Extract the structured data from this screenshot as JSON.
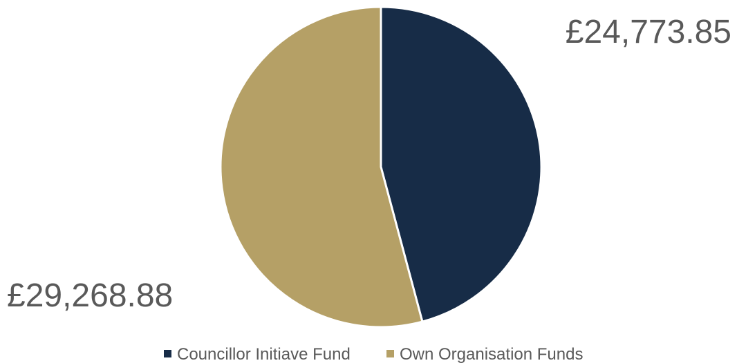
{
  "chart_data": {
    "type": "pie",
    "title": "",
    "categories": [
      "Councillor Initiave Fund",
      "Own Organisation Funds"
    ],
    "values": [
      24773.85,
      29268.88
    ],
    "data_labels": [
      "£24,773.85",
      "£29,268.88"
    ],
    "colors": [
      "#172c47",
      "#b5a066"
    ],
    "start_angle_deg": 0,
    "direction": "clockwise",
    "legend": {
      "position": "bottom",
      "entries": [
        "Councillor Initiave Fund",
        "Own Organisation Funds"
      ]
    }
  }
}
